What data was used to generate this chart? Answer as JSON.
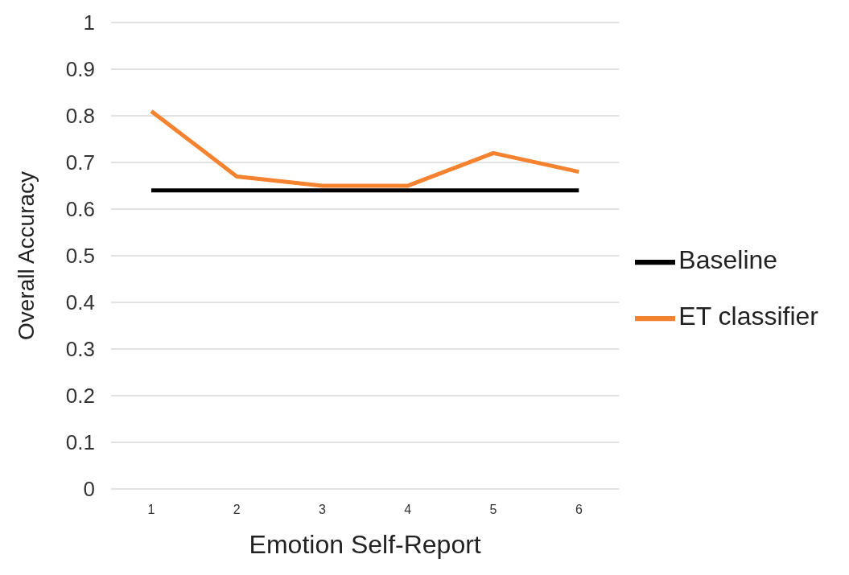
{
  "chart_data": {
    "type": "line",
    "xlabel": "Emotion Self-Report",
    "ylabel": "Overall Accuracy",
    "categories": [
      "1",
      "2",
      "3",
      "4",
      "5",
      "6"
    ],
    "series": [
      {
        "name": "ET classifier",
        "color": "#f4822f",
        "values": [
          0.81,
          0.67,
          0.65,
          0.65,
          0.72,
          0.68
        ]
      },
      {
        "name": "Baseline",
        "color": "#000000",
        "values": [
          0.64,
          0.64,
          0.64,
          0.64,
          0.64,
          0.64
        ]
      }
    ],
    "ylim": [
      0,
      1
    ],
    "yticks": [
      0,
      0.1,
      0.2,
      0.3,
      0.4,
      0.5,
      0.6,
      0.7,
      0.8,
      0.9,
      1
    ],
    "grid": "y",
    "legend": "right",
    "marker": "none",
    "line_style": "solid"
  }
}
